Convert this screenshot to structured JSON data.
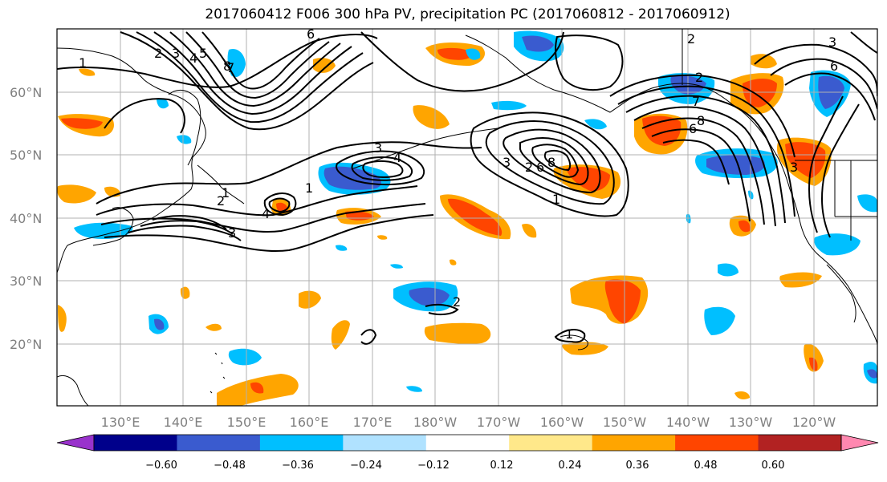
{
  "title": "2017060412 F006 300 hPa PV, precipitation PC (2017060812 - 2017060912)",
  "lat_labels": [
    "60°N",
    "50°N",
    "40°N",
    "30°N",
    "20°N"
  ],
  "lon_labels": [
    "130°E",
    "140°E",
    "150°E",
    "160°E",
    "170°E",
    "180°W",
    "170°W",
    "160°W",
    "150°W",
    "140°W",
    "130°W",
    "120°W"
  ],
  "colorbar": {
    "colors": [
      "#9932cc",
      "#00008b",
      "#3a5bcf",
      "#00bfff",
      "#b0e2ff",
      "#ffffff",
      "#ffe88a",
      "#ffa500",
      "#ff4500",
      "#b22222",
      "#ff88b0"
    ],
    "tick_labels": [
      "−0.60",
      "−0.48",
      "−0.36",
      "−0.24",
      "−0.12",
      "0.12",
      "0.24",
      "0.36",
      "0.48",
      "0.60"
    ]
  },
  "contour_labels": [
    "1",
    "2",
    "3",
    "4",
    "5",
    "6",
    "7",
    "8",
    "3",
    "4",
    "4",
    "3",
    "2",
    "1",
    "1",
    "2",
    "3",
    "6",
    "8",
    "7",
    "1",
    "2",
    "6",
    "8",
    "2",
    "1",
    "2",
    "3",
    "6",
    "3"
  ],
  "colors": {
    "contour": "#000000",
    "grid": "#b0b0b0",
    "coast": "#000000",
    "tick_label": "#808080"
  }
}
